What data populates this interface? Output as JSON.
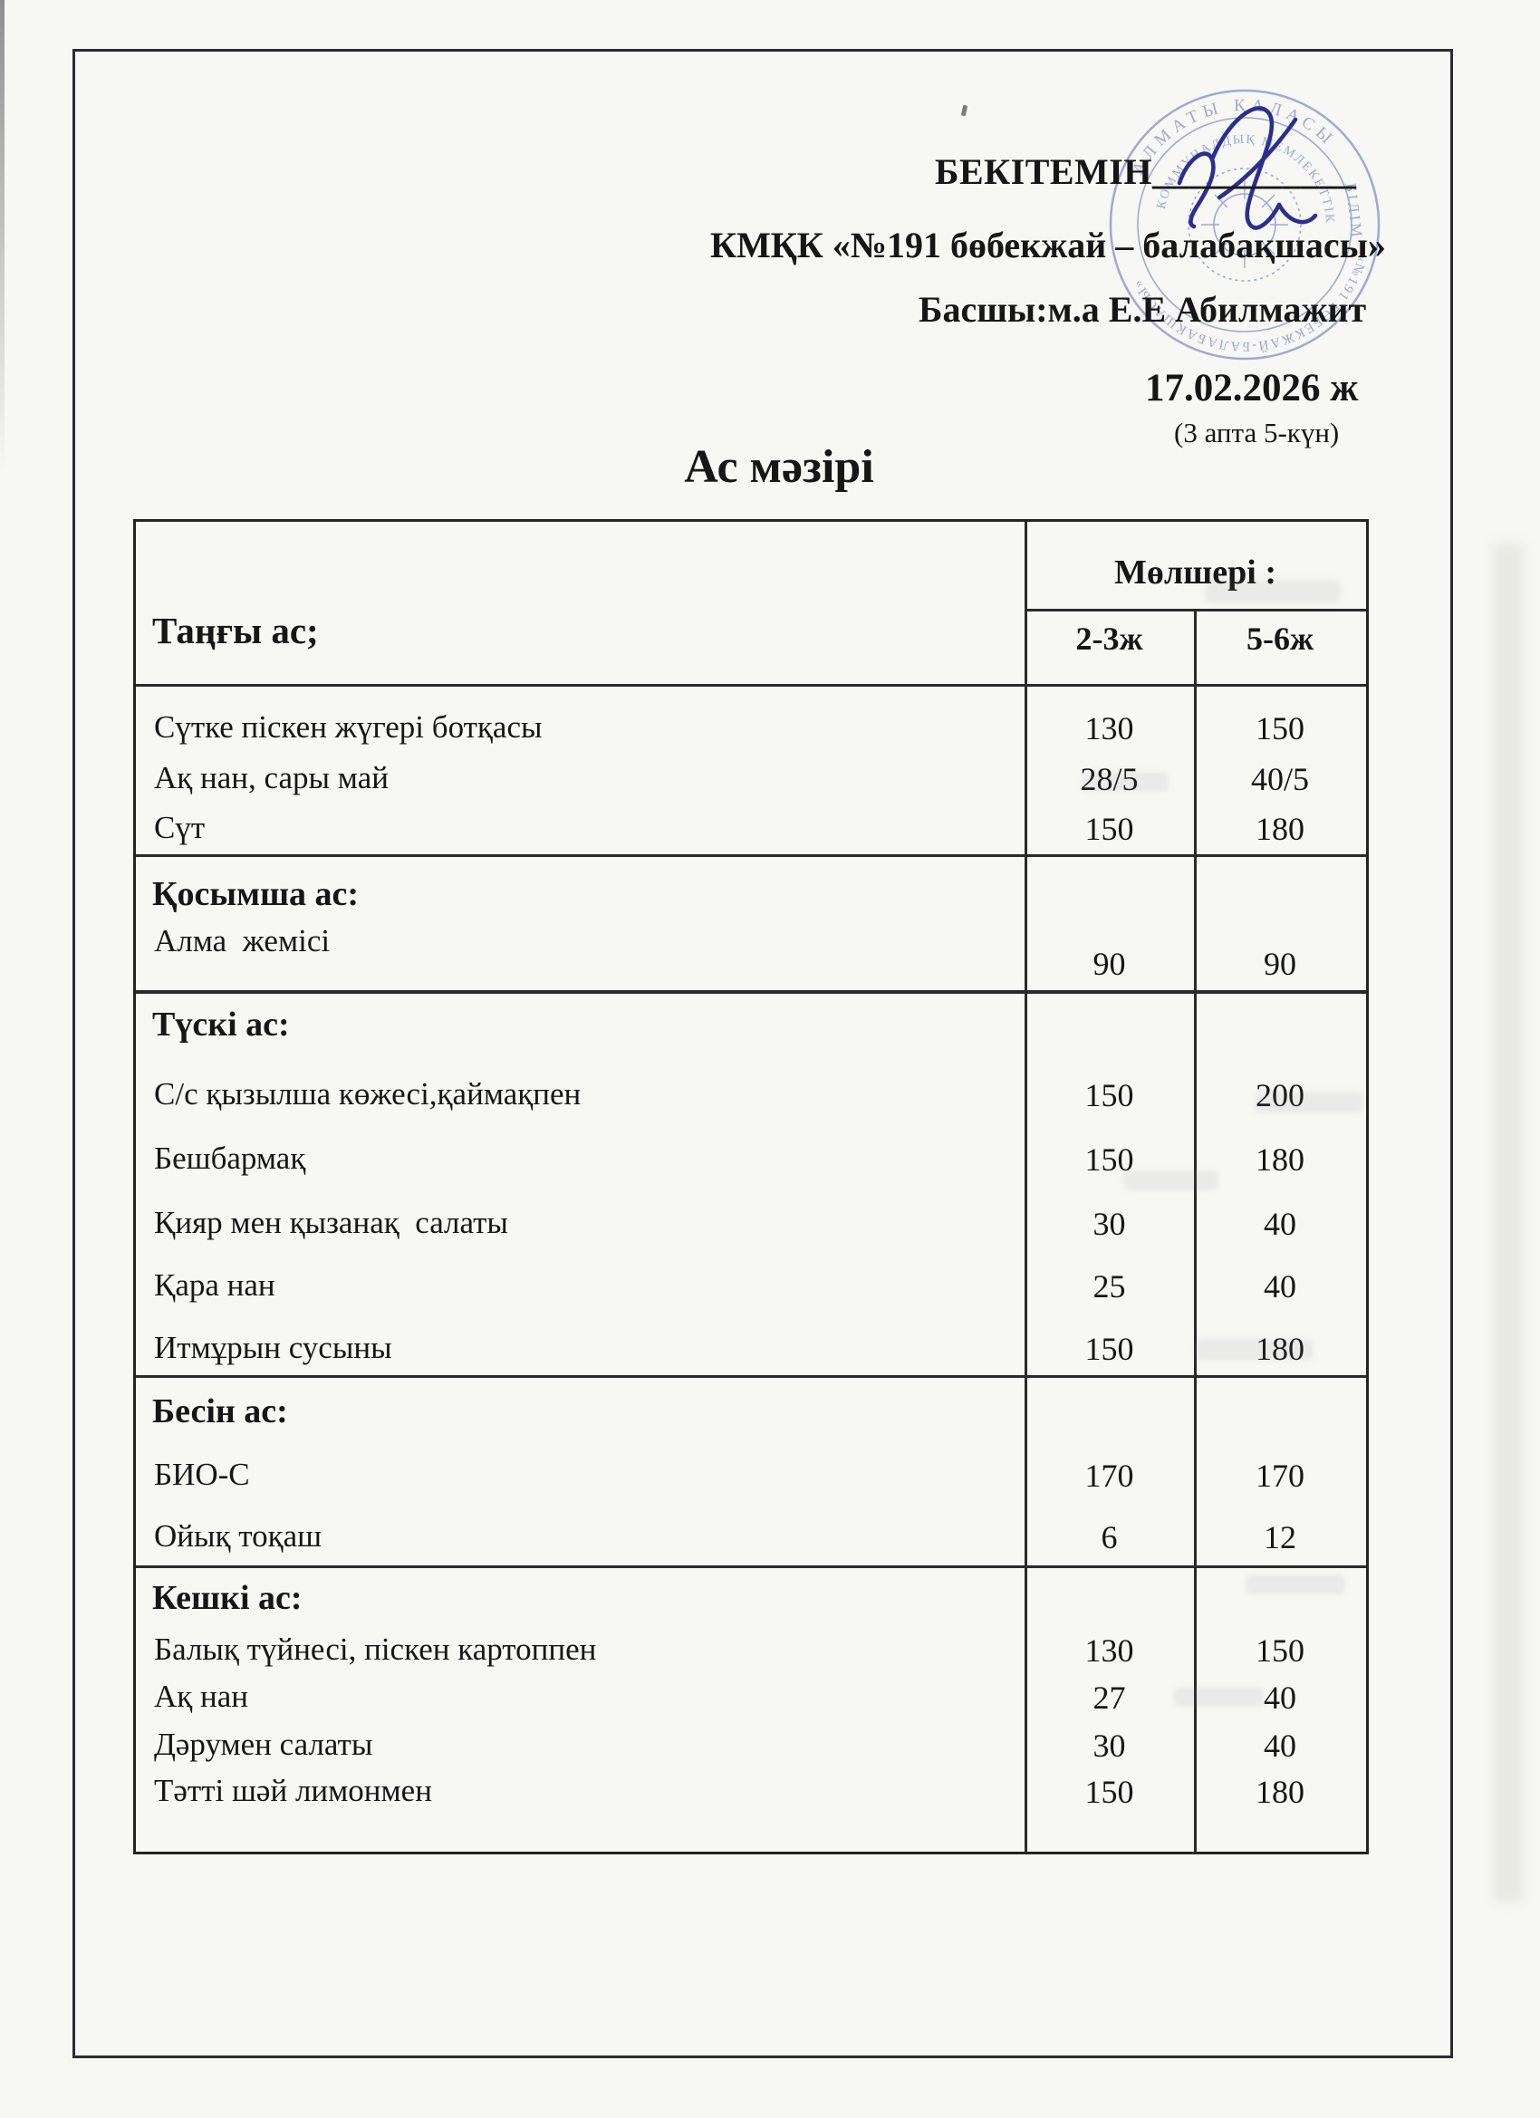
{
  "document": {
    "approve_line": "БЕКІТЕМІН___________",
    "org_line": "КМҚК «№191 бөбекжай – балабақшасы»",
    "head_line": "Басшы:м.а Е.Е Абилмажит",
    "date_line": "17.02.2026 ж",
    "week_line": "(3 апта 5-күн)",
    "title": "Ас мәзірі"
  },
  "stamp": {
    "top_arc": "АЛМАТЫ ҚАЛАСЫ",
    "inner_arc": "КОММУНАЛДЫҚ МЕМЛЕКЕТТІК",
    "bottom_arc": "«№191 БӨБЕКЖАЙ-БАЛАБАҚШАСЫ»",
    "side_word": "БІЛІМ",
    "ink_color": "#8494cf"
  },
  "signature": {
    "ink_color": "#2b2f8e"
  },
  "table": {
    "first_col_header": "Таңғы ас;",
    "qty_header": "Мөлшері :",
    "age_columns": [
      "2-3ж",
      "5-6ж"
    ],
    "sections": [
      {
        "title": "",
        "items": [
          {
            "name": "Сүтке піскен жүгері ботқасы",
            "v1": "130",
            "v2": "150"
          },
          {
            "name": "Ақ нан, сары май",
            "v1": "28/5",
            "v2": "40/5"
          },
          {
            "name": "Сүт",
            "v1": "150",
            "v2": "180"
          }
        ]
      },
      {
        "title": "Қосымша ас:",
        "items": [
          {
            "name": "Алма  жемісі",
            "v1": "90",
            "v2": "90"
          }
        ]
      },
      {
        "title": "Түскі ас:",
        "items": [
          {
            "name": "С/с қызылша көжесі,қаймақпен",
            "v1": "150",
            "v2": "200"
          },
          {
            "name": "Бешбармақ",
            "v1": "150",
            "v2": "180"
          },
          {
            "name": "Қияр мен қызанақ  салаты",
            "v1": "30",
            "v2": "40"
          },
          {
            "name": "Қара нан",
            "v1": "25",
            "v2": "40"
          },
          {
            "name": "Итмұрын сусыны",
            "v1": "150",
            "v2": "180"
          }
        ]
      },
      {
        "title": "Бесін ас:",
        "items": [
          {
            "name": "БИО-С",
            "v1": "170",
            "v2": "170"
          },
          {
            "name": "Ойық тоқаш",
            "v1": "6",
            "v2": "12"
          }
        ]
      },
      {
        "title": "Кешкі ас:",
        "items": [
          {
            "name": "Балық түйнесі, піскен картоппен",
            "v1": "130",
            "v2": "150"
          },
          {
            "name": "Ақ нан",
            "v1": "27",
            "v2": "40"
          },
          {
            "name": "Дәрумен салаты",
            "v1": "30",
            "v2": "40"
          },
          {
            "name": "Тәтті шәй лимонмен",
            "v1": "150",
            "v2": "180"
          }
        ]
      }
    ]
  }
}
